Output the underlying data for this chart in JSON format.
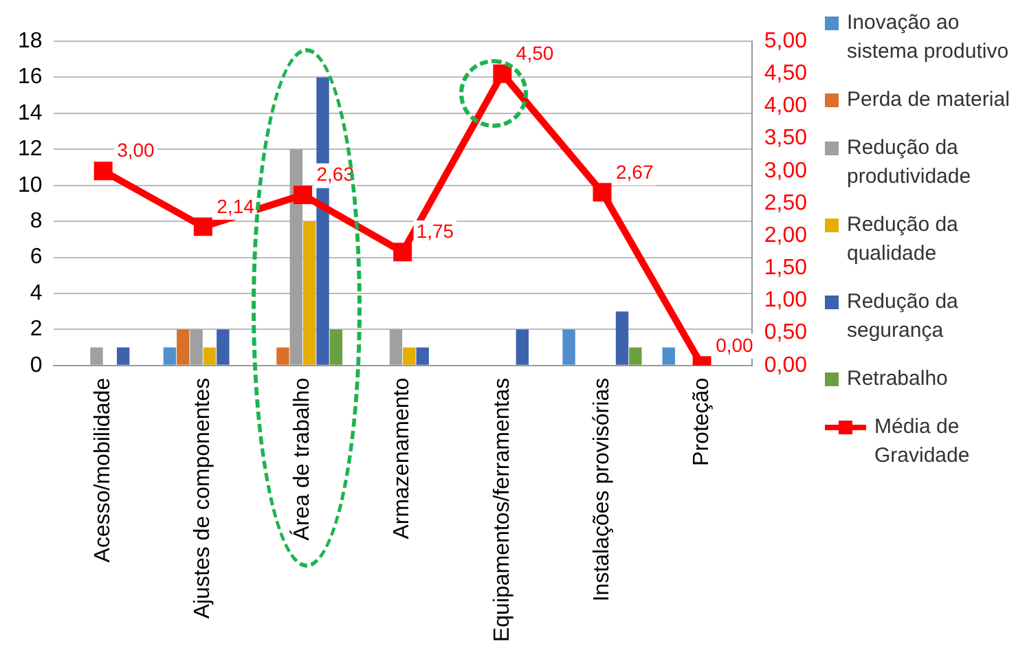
{
  "chart_data": {
    "type": "bar",
    "categories": [
      "Acesso/mobilidade",
      "Ajustes de componentes",
      "Área de trabalho",
      "Armazenamento",
      "Equipamentos/ferramentas",
      "Instalações provisórias",
      "Proteção"
    ],
    "series": [
      {
        "name": "Inovação ao sistema produtivo",
        "color": "#4f8fcb",
        "values": [
          0,
          1,
          0,
          0,
          0,
          2,
          1
        ]
      },
      {
        "name": "Perda de material",
        "color": "#d9712b",
        "values": [
          0,
          2,
          1,
          0,
          0,
          0,
          0
        ]
      },
      {
        "name": "Redução da produtividade",
        "color": "#a0a0a0",
        "values": [
          1,
          2,
          12,
          2,
          0,
          0,
          0
        ]
      },
      {
        "name": "Redução da qualidade",
        "color": "#e5ad00",
        "values": [
          0,
          1,
          8,
          1,
          0,
          0,
          0
        ]
      },
      {
        "name": "Redução da segurança",
        "color": "#3d62ae",
        "values": [
          1,
          2,
          16,
          1,
          2,
          3,
          0
        ]
      },
      {
        "name": "Retrabalho",
        "color": "#6aa040",
        "values": [
          0,
          0,
          2,
          0,
          0,
          1,
          0
        ]
      },
      {
        "name": "Média de Gravidade",
        "type": "line",
        "axis": "y2",
        "color": "#ff0000",
        "values": [
          3.0,
          2.14,
          2.63,
          1.75,
          4.5,
          2.67,
          0.0
        ],
        "value_labels": [
          "3,00",
          "2,14",
          "2,63",
          "1,75",
          "4,50",
          "2,67",
          "0,00"
        ]
      }
    ],
    "ylim": [
      0,
      18
    ],
    "yticks": [
      0,
      2,
      4,
      6,
      8,
      10,
      12,
      14,
      16,
      18
    ],
    "y2lim": [
      0,
      5
    ],
    "y2ticks": [
      {
        "value": 0,
        "label": "0,00"
      },
      {
        "value": 0.5,
        "label": "0,50"
      },
      {
        "value": 1,
        "label": "1,00"
      },
      {
        "value": 1.5,
        "label": "1,50"
      },
      {
        "value": 2,
        "label": "2,00"
      },
      {
        "value": 2.5,
        "label": "2,50"
      },
      {
        "value": 3,
        "label": "3,00"
      },
      {
        "value": 3.5,
        "label": "3,50"
      },
      {
        "value": 4,
        "label": "4,00"
      },
      {
        "value": 4.5,
        "label": "4,50"
      },
      {
        "value": 5,
        "label": "5,00"
      }
    ],
    "grid": "y",
    "legend": "right",
    "marker": "square",
    "line_style": "solid"
  }
}
